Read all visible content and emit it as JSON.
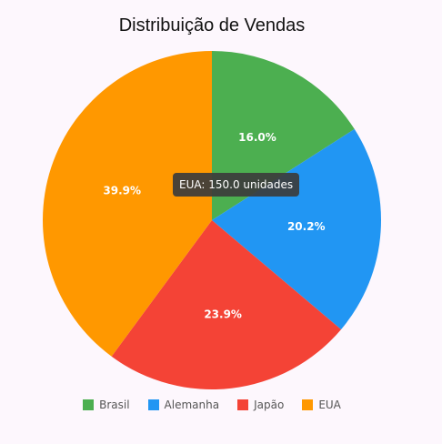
{
  "chart_data": {
    "type": "pie",
    "title": "Distribuição de Vendas",
    "categories": [
      "Brasil",
      "Alemanha",
      "Japão",
      "EUA"
    ],
    "values": [
      60,
      76,
      90,
      150
    ],
    "value_labels": [
      "16.0%",
      "20.2%",
      "23.9%",
      "39.9%"
    ],
    "colors": [
      "#4caf50",
      "#2196f3",
      "#f44336",
      "#ff9800"
    ],
    "legend_position": "bottom",
    "start_angle": "top",
    "direction": "clockwise"
  },
  "tooltip": {
    "text": "EUA: 150.0 unidades"
  }
}
